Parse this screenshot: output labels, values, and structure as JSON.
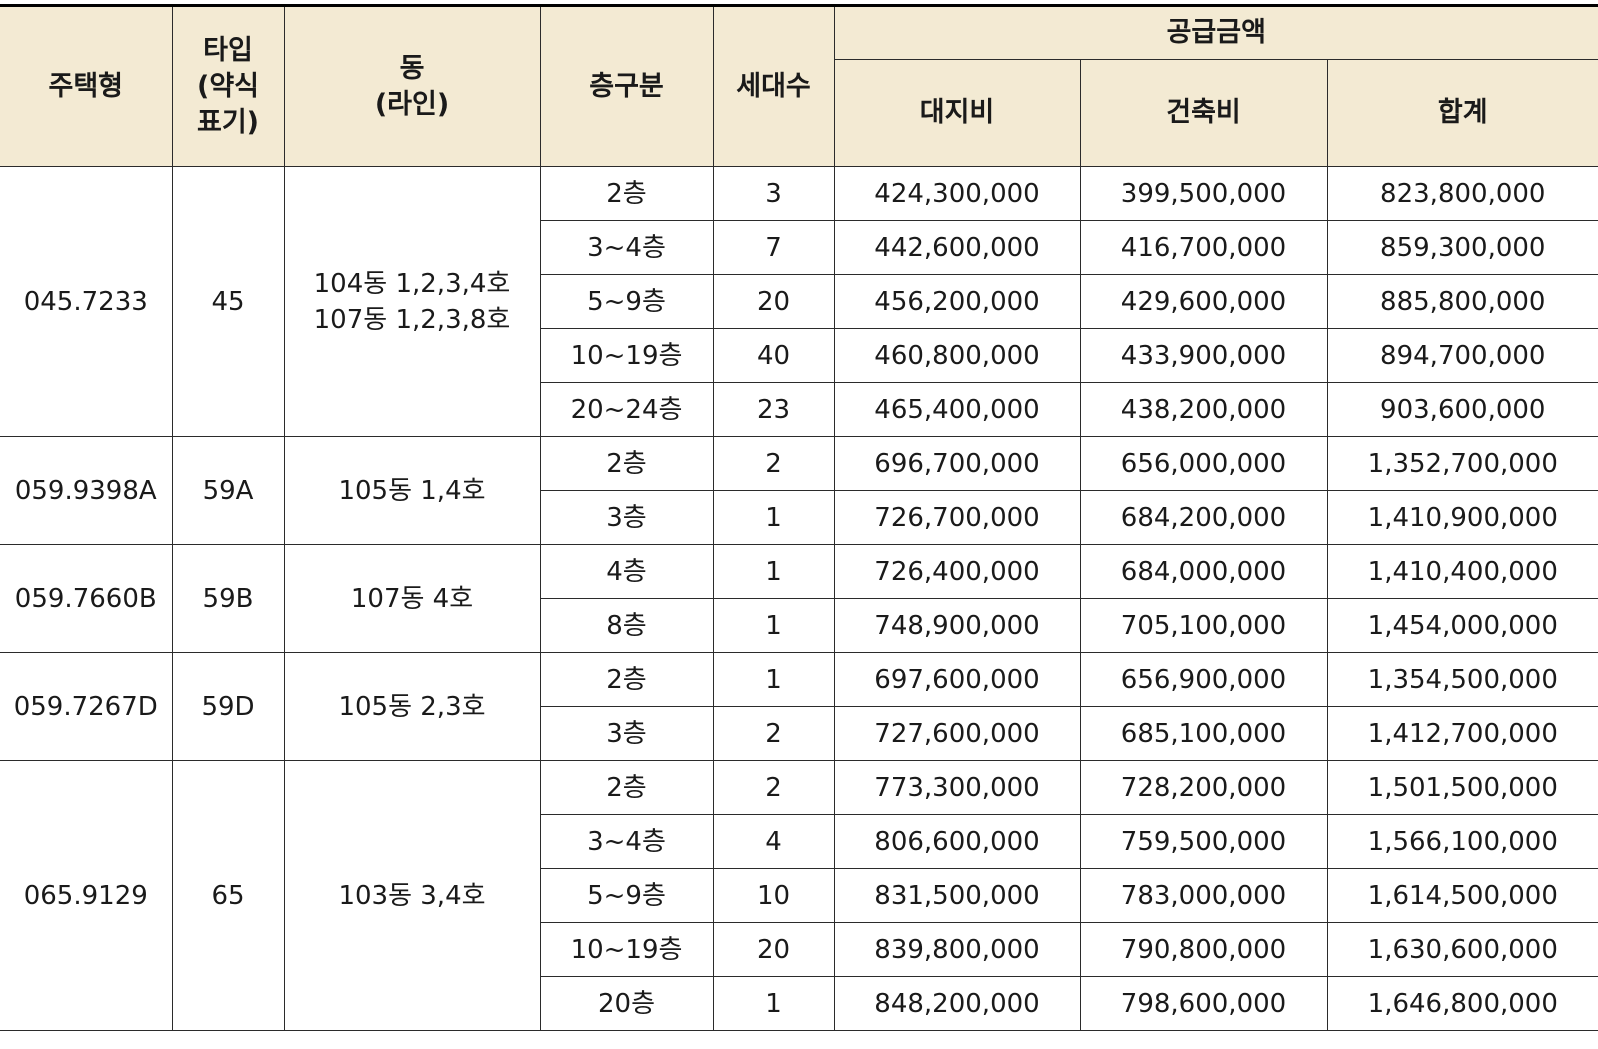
{
  "headers": {
    "type_size": "주택형",
    "type_abbr": "타입\n(약식\n표기)",
    "dong": "동\n(라인)",
    "floor": "층구분",
    "households": "세대수",
    "supply_price": "공급금액",
    "land": "대지비",
    "building": "건축비",
    "total": "합계"
  },
  "groups": [
    {
      "type_size": "045.7233",
      "type_abbr": "45",
      "dong": "104동 1,2,3,4호\n107동 1,2,3,8호",
      "rows": [
        {
          "floor": "2층",
          "households": "3",
          "land": "424,300,000",
          "building": "399,500,000",
          "total": "823,800,000"
        },
        {
          "floor": "3~4층",
          "households": "7",
          "land": "442,600,000",
          "building": "416,700,000",
          "total": "859,300,000"
        },
        {
          "floor": "5~9층",
          "households": "20",
          "land": "456,200,000",
          "building": "429,600,000",
          "total": "885,800,000"
        },
        {
          "floor": "10~19층",
          "households": "40",
          "land": "460,800,000",
          "building": "433,900,000",
          "total": "894,700,000"
        },
        {
          "floor": "20~24층",
          "households": "23",
          "land": "465,400,000",
          "building": "438,200,000",
          "total": "903,600,000"
        }
      ]
    },
    {
      "type_size": "059.9398A",
      "type_abbr": "59A",
      "dong": "105동 1,4호",
      "rows": [
        {
          "floor": "2층",
          "households": "2",
          "land": "696,700,000",
          "building": "656,000,000",
          "total": "1,352,700,000"
        },
        {
          "floor": "3층",
          "households": "1",
          "land": "726,700,000",
          "building": "684,200,000",
          "total": "1,410,900,000"
        }
      ]
    },
    {
      "type_size": "059.7660B",
      "type_abbr": "59B",
      "dong": "107동 4호",
      "rows": [
        {
          "floor": "4층",
          "households": "1",
          "land": "726,400,000",
          "building": "684,000,000",
          "total": "1,410,400,000"
        },
        {
          "floor": "8층",
          "households": "1",
          "land": "748,900,000",
          "building": "705,100,000",
          "total": "1,454,000,000"
        }
      ]
    },
    {
      "type_size": "059.7267D",
      "type_abbr": "59D",
      "dong": "105동 2,3호",
      "rows": [
        {
          "floor": "2층",
          "households": "1",
          "land": "697,600,000",
          "building": "656,900,000",
          "total": "1,354,500,000"
        },
        {
          "floor": "3층",
          "households": "2",
          "land": "727,600,000",
          "building": "685,100,000",
          "total": "1,412,700,000"
        }
      ]
    },
    {
      "type_size": "065.9129",
      "type_abbr": "65",
      "dong": "103동 3,4호",
      "rows": [
        {
          "floor": "2층",
          "households": "2",
          "land": "773,300,000",
          "building": "728,200,000",
          "total": "1,501,500,000"
        },
        {
          "floor": "3~4층",
          "households": "4",
          "land": "806,600,000",
          "building": "759,500,000",
          "total": "1,566,100,000"
        },
        {
          "floor": "5~9층",
          "households": "10",
          "land": "831,500,000",
          "building": "783,000,000",
          "total": "1,614,500,000"
        },
        {
          "floor": "10~19층",
          "households": "20",
          "land": "839,800,000",
          "building": "790,800,000",
          "total": "1,630,600,000"
        },
        {
          "floor": "20층",
          "households": "1",
          "land": "848,200,000",
          "building": "798,600,000",
          "total": "1,646,800,000"
        }
      ]
    }
  ]
}
